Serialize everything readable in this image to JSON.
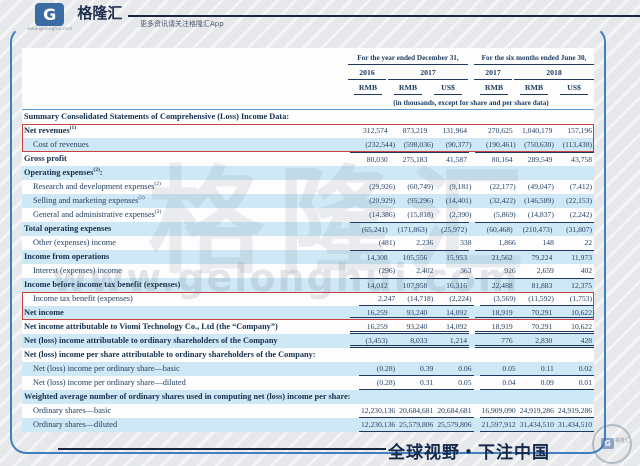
{
  "brand": {
    "logo_letter": "G",
    "logo_text": "格隆汇",
    "site": "www.gelonghui.com",
    "tagline": "更多资讯请关注格隆汇App"
  },
  "watermark": {
    "big": "格隆汇",
    "url": "www.gelonghui.com"
  },
  "footer": {
    "slogan": "全球视野・下注中国",
    "stamp_text": "格隆汇"
  },
  "colors": {
    "accent_blue": "#3f7fc1",
    "row_highlight": "#cfe8f6",
    "text_navy": "#1c3a5e",
    "alert_red": "#c9403d",
    "line_dark": "#1b2741",
    "logo_blue": "#3a6ca3"
  },
  "table": {
    "header": {
      "period_groups": [
        {
          "label": "For the year ended December 31,"
        },
        {
          "label": "For the six months ended June 30,"
        }
      ],
      "years": [
        "2016",
        "2017",
        "2017",
        "2018"
      ],
      "currencies": [
        "RMB",
        "RMB",
        "US$",
        "RMB",
        "RMB",
        "US$"
      ],
      "note": "(in thousands, except for share and per share data)"
    },
    "rows": [
      {
        "label": "Summary Consolidated Statements of Comprehensive (Loss) Income Data:",
        "bold": true,
        "shade": false,
        "values": [
          "",
          "",
          "",
          "",
          "",
          ""
        ]
      },
      {
        "label": "Net revenues",
        "sup": "(1)",
        "bold": true,
        "shade": false,
        "box": "start",
        "values": [
          "312,574",
          "873,219",
          "131,964",
          "270,625",
          "1,040,179",
          "157,196"
        ]
      },
      {
        "label": "Cost of revenues",
        "indent": true,
        "shade": true,
        "box": "end",
        "values": [
          "(232,544)",
          "(598,036)",
          "(90,377)",
          "(190,461)",
          "(750,630)",
          "(113,438)"
        ]
      },
      {
        "label": "Gross profit",
        "bold": true,
        "shade": false,
        "rule_above": true,
        "values": [
          "80,030",
          "275,183",
          "41,587",
          "80,164",
          "289,549",
          "43,758"
        ]
      },
      {
        "label": "Operating expenses",
        "sup": "(2)",
        "tail": ":",
        "bold": true,
        "shade": true,
        "values": [
          "",
          "",
          "",
          "",
          "",
          ""
        ]
      },
      {
        "label": "Research and development expenses",
        "sup": "(2)",
        "indent": true,
        "shade": false,
        "values": [
          "(29,926)",
          "(60,749)",
          "(9,181)",
          "(22,177)",
          "(49,047)",
          "(7,412)"
        ]
      },
      {
        "label": "Selling and marketing expenses",
        "sup": "(2)",
        "indent": true,
        "shade": true,
        "values": [
          "(20,929)",
          "(95,296)",
          "(14,401)",
          "(32,422)",
          "(146,589)",
          "(22,153)"
        ]
      },
      {
        "label": "General and administrative expenses",
        "sup": "(2)",
        "indent": true,
        "shade": false,
        "values": [
          "(14,386)",
          "(15,818)",
          "(2,390)",
          "(5,869)",
          "(14,837)",
          "(2,242)"
        ]
      },
      {
        "label": "Total operating expenses",
        "bold": true,
        "shade": true,
        "rule_above": true,
        "values": [
          "(65,241)",
          "(171,863)",
          "(25,972)",
          "(60,468)",
          "(210,473)",
          "(31,807)"
        ]
      },
      {
        "label": "Other (expenses) income",
        "indent": true,
        "shade": false,
        "values": [
          "(481)",
          "2,236",
          "338",
          "1,866",
          "148",
          "22"
        ]
      },
      {
        "label": "Income from operations",
        "bold": true,
        "shade": true,
        "rule_above": true,
        "values": [
          "14,308",
          "105,556",
          "15,953",
          "21,562",
          "79,224",
          "11,973"
        ]
      },
      {
        "label": "Interest (expenses) income",
        "indent": true,
        "shade": false,
        "values": [
          "(296)",
          "2,402",
          "363",
          "926",
          "2,659",
          "402"
        ]
      },
      {
        "label": "Income before income tax benefit (expenses)",
        "bold": true,
        "shade": true,
        "rule_above": true,
        "values": [
          "14,012",
          "107,958",
          "16,316",
          "22,488",
          "81,883",
          "12,375"
        ]
      },
      {
        "label": "Income tax benefit (expenses)",
        "indent": true,
        "shade": false,
        "box": "start",
        "rule_below": "single",
        "values": [
          "2,247",
          "(14,718)",
          "(2,224)",
          "(3,569)",
          "(11,592)",
          "(1,753)"
        ]
      },
      {
        "label": "Net income",
        "bold": true,
        "shade": true,
        "box": "end",
        "rule_below": "double",
        "values": [
          "16,259",
          "93,240",
          "14,092",
          "18,919",
          "70,291",
          "10,622"
        ]
      },
      {
        "label": "Net income attributable to Viomi Technology Co., Ltd (the “Company”)",
        "bold": true,
        "shade": false,
        "rule_below": "double",
        "values": [
          "16,259",
          "93,240",
          "14,092",
          "18,919",
          "70,291",
          "10,622"
        ]
      },
      {
        "label": "Net (loss) income attributable to ordinary shareholders of the Company",
        "bold": true,
        "shade": true,
        "rule_below": "double",
        "values": [
          "(3,453)",
          "8,033",
          "1,214",
          "776",
          "2,830",
          "428"
        ]
      },
      {
        "label": "Net (loss) income per share attributable to ordinary shareholders of the Company:",
        "bold": true,
        "shade": false,
        "values": [
          "",
          "",
          "",
          "",
          "",
          ""
        ]
      },
      {
        "label": "Net (loss) income per ordinary share—basic",
        "indent": true,
        "shade": true,
        "rule_below": "single",
        "values": [
          "(0.28)",
          "0.39",
          "0.06",
          "0.05",
          "0.11",
          "0.02"
        ]
      },
      {
        "label": "Net (loss) income per ordinary share—diluted",
        "indent": true,
        "shade": false,
        "rule_below": "single",
        "values": [
          "(0.28)",
          "0.31",
          "0.05",
          "0.04",
          "0.09",
          "0.01"
        ]
      },
      {
        "label": "Weighted average number of ordinary shares used in computing net (loss) income per share:",
        "bold": true,
        "shade": true,
        "values": [
          "",
          "",
          "",
          "",
          "",
          ""
        ]
      },
      {
        "label": "Ordinary shares—basic",
        "indent": true,
        "shade": false,
        "rule_below": "single",
        "values": [
          "12,230,136",
          "20,684,681",
          "20,684,681",
          "16,909,090",
          "24,919,286",
          "24,919,286"
        ]
      },
      {
        "label": "Ordinary shares—diluted",
        "indent": true,
        "shade": true,
        "rule_below": "single",
        "values": [
          "12,230,136",
          "25,579,806",
          "25,579,806",
          "21,597,912",
          "31,434,510",
          "31,434,510"
        ]
      }
    ]
  }
}
